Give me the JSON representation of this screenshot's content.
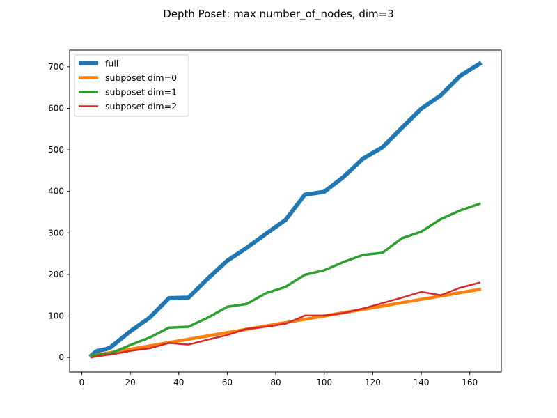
{
  "chart_data": {
    "type": "line",
    "title": "Depth Poset: max number_of_nodes, dim=3",
    "xlabel": "",
    "ylabel": "",
    "xlim": [
      -5,
      173
    ],
    "ylim": [
      -35,
      740
    ],
    "xticks": [
      0,
      20,
      40,
      60,
      80,
      100,
      120,
      140,
      160
    ],
    "yticks": [
      0,
      100,
      200,
      300,
      400,
      500,
      600,
      700
    ],
    "grid": false,
    "legend_position": "top-left",
    "x": [
      4,
      6,
      8,
      10,
      12,
      20,
      28,
      36,
      44,
      52,
      60,
      68,
      76,
      84,
      92,
      100,
      108,
      116,
      124,
      132,
      140,
      148,
      156,
      164
    ],
    "series": [
      {
        "name": "full",
        "color": "#1f77b4",
        "linewidth": 6,
        "values": [
          5,
          15,
          18,
          20,
          25,
          63,
          96,
          143,
          144,
          190,
          233,
          264,
          298,
          331,
          392,
          399,
          435,
          479,
          506,
          553,
          599,
          631,
          678,
          707
        ]
      },
      {
        "name": "subposet dim=0",
        "color": "#ff7f0e",
        "linewidth": 4.5,
        "values": [
          4,
          6,
          8,
          10,
          12,
          20,
          28,
          36,
          44,
          52,
          60,
          68,
          76,
          84,
          92,
          100,
          108,
          116,
          124,
          132,
          140,
          148,
          156,
          164
        ]
      },
      {
        "name": "subposet dim=1",
        "color": "#2ca02c",
        "linewidth": 3.5,
        "values": [
          5,
          6,
          8,
          8,
          10,
          30,
          48,
          72,
          74,
          96,
          122,
          129,
          155,
          170,
          199,
          210,
          230,
          247,
          252,
          287,
          303,
          333,
          354,
          370
        ]
      },
      {
        "name": "subposet dim=2",
        "color": "#d62728",
        "linewidth": 2.5,
        "values": [
          0,
          3,
          4,
          6,
          7,
          16,
          22,
          35,
          31,
          43,
          54,
          69,
          74,
          81,
          101,
          101,
          107,
          118,
          131,
          144,
          158,
          150,
          168,
          180
        ]
      }
    ]
  }
}
